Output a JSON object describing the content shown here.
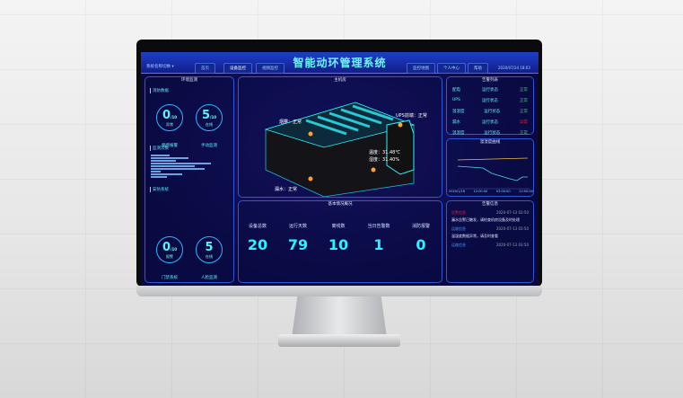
{
  "title": "智能动环管理系统",
  "system_switch": "系统名称切换 ▾",
  "nav_left": [
    "首页",
    "设备监控",
    "视频监控"
  ],
  "nav_right": [
    "监控地图",
    "个人中心",
    "帮助"
  ],
  "datetime": "2020/07/24 18:03",
  "left_panel": {
    "title": "环境监测",
    "fire": {
      "title": "消防数据",
      "rings": [
        {
          "value": "0",
          "total": "/10",
          "sub": "异常",
          "label": "烟感报警"
        },
        {
          "value": "5",
          "total": "/10",
          "sub": "在线",
          "label": "手动监测"
        }
      ]
    },
    "monitor": {
      "title": "监测次数",
      "bars": [
        0.3,
        0.6,
        0.4,
        0.95,
        0.7,
        0.85,
        0.15,
        0.5,
        0.25
      ]
    },
    "security": {
      "title": "安防系统",
      "rings": [
        {
          "value": "0",
          "total": "/10",
          "sub": "报警",
          "label": "门禁系统"
        },
        {
          "value": "5",
          "total": "",
          "sub": "在线",
          "label": "人脸监测"
        }
      ]
    }
  },
  "center": {
    "title": "主机房",
    "callouts": {
      "smoke": "烟雾：正常",
      "ups": "UPS前端：正常",
      "temp": "温度：31.48℃",
      "humidity": "湿度：31.40%",
      "leak": "漏水：正常"
    }
  },
  "summary": {
    "title": "基本情况概况",
    "metrics": [
      {
        "label": "设备总数",
        "value": "20"
      },
      {
        "label": "运行天数",
        "value": "79"
      },
      {
        "label": "离线数",
        "value": "10"
      },
      {
        "label": "当日告警数",
        "value": "1"
      },
      {
        "label": "消防报警",
        "value": "0"
      }
    ]
  },
  "status": {
    "title": "告警列表",
    "rows": [
      {
        "name": "配电",
        "state": "运行状态",
        "result": "正常"
      },
      {
        "name": "UPS",
        "state": "运行状态",
        "result": "正常"
      },
      {
        "name": "温湿度",
        "state": "运行状态",
        "result": "正常"
      },
      {
        "name": "漏水",
        "state": "运行状态",
        "result": "异常"
      },
      {
        "name": "温湿度",
        "state": "运行状态",
        "result": "正常"
      }
    ]
  },
  "chart": {
    "title": "温湿度曲线",
    "yticks": [
      "100",
      "80",
      "60",
      "40",
      "20",
      "0"
    ],
    "xticks": [
      "2020/1/18",
      "12:00:00",
      "03:00:00",
      "12:00:00"
    ]
  },
  "alerts": {
    "title": "告警信息",
    "items": [
      {
        "tag": "告警信息",
        "time": "2020-07-13 03:50",
        "text": "漏水告警已触发，请检查机房设备及时处理"
      },
      {
        "tag": "运维信息",
        "time": "2020-07-13 03:50",
        "text": "温湿度数据异常，请及时查看"
      },
      {
        "tag": "运维信息",
        "time": "2020-07-13 03:50",
        "text": ""
      }
    ]
  },
  "colors": {
    "accent": "#2ff0ff",
    "normal": "#2fd24a",
    "error": "#e8203a"
  }
}
